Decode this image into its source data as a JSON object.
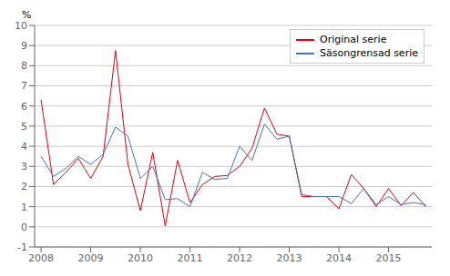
{
  "chart_data": {
    "type": "line",
    "y_label": "%",
    "x": [
      2008.0,
      2008.25,
      2008.5,
      2008.75,
      2009.0,
      2009.25,
      2009.5,
      2009.75,
      2010.0,
      2010.25,
      2010.5,
      2010.75,
      2011.0,
      2011.25,
      2011.5,
      2011.75,
      2012.0,
      2012.25,
      2012.5,
      2012.75,
      2013.0,
      2013.25,
      2013.5,
      2013.75,
      2014.0,
      2014.25,
      2014.5,
      2014.75,
      2015.0,
      2015.25,
      2015.5,
      2015.75
    ],
    "series": [
      {
        "name": "Original serie",
        "color": "#e8000b",
        "values": [
          6.3,
          2.1,
          2.7,
          3.4,
          2.4,
          3.5,
          8.75,
          3.1,
          0.8,
          3.7,
          0.05,
          3.3,
          1.2,
          2.1,
          2.5,
          2.55,
          3.0,
          3.9,
          5.9,
          4.6,
          4.5,
          1.5,
          1.5,
          1.5,
          0.9,
          2.6,
          1.9,
          1.0,
          1.9,
          1.05,
          1.7,
          1.0
        ]
      },
      {
        "name": "Säsongrensad serie",
        "color": "#4472c4",
        "values": [
          3.5,
          2.5,
          2.9,
          3.5,
          3.1,
          3.6,
          4.95,
          4.5,
          2.4,
          3.0,
          1.35,
          1.4,
          1.0,
          2.7,
          2.35,
          2.4,
          4.0,
          3.3,
          5.1,
          4.35,
          4.5,
          1.6,
          1.5,
          1.5,
          1.5,
          1.15,
          1.9,
          1.1,
          1.5,
          1.1,
          1.2,
          1.1
        ]
      }
    ],
    "xlim": [
      2007.87,
      2015.87
    ],
    "xticks": [
      2008,
      2009,
      2010,
      2011,
      2012,
      2013,
      2014,
      2015
    ],
    "ylim": [
      -1,
      10
    ],
    "yticks": [
      -1,
      0,
      1,
      2,
      3,
      4,
      5,
      6,
      7,
      8,
      9,
      10
    ],
    "grid": true,
    "legend": "upper right"
  }
}
